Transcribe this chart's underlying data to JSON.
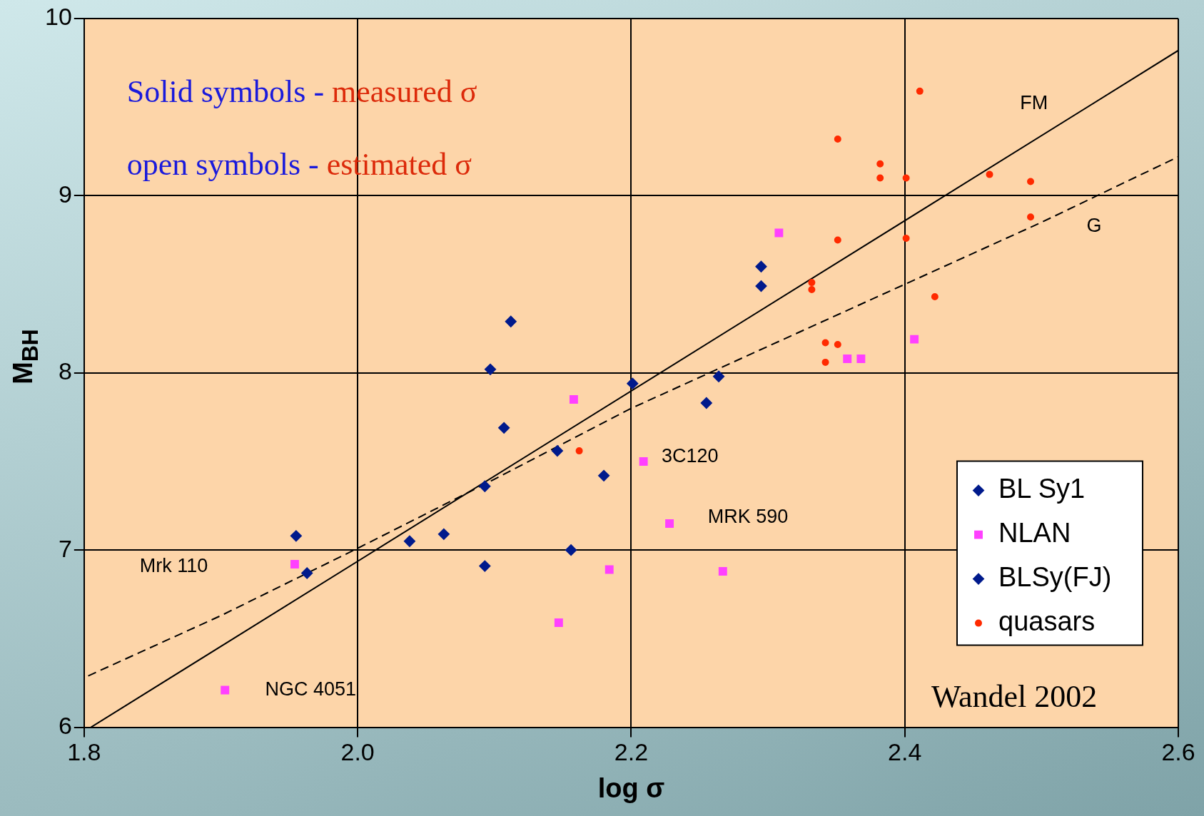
{
  "chart_data": {
    "type": "scatter",
    "xlabel": "log σ",
    "ylabel": "M$_{BH}$",
    "xlim": [
      1.8,
      2.6
    ],
    "xticks": [
      {
        "value": 1.8,
        "label": "1.8"
      },
      {
        "value": 2,
        "label": "2.0"
      },
      {
        "value": 2.2,
        "label": "2.2"
      },
      {
        "value": 2.4,
        "label": "2.4"
      },
      {
        "value": 2.6,
        "label": "2.6"
      }
    ],
    "ylim": [
      6,
      10
    ],
    "yticks": [
      6,
      7,
      8,
      9,
      10
    ],
    "grid": true,
    "legend": "bottom right",
    "series": [
      {
        "name": "BL Sy1",
        "color": "#001a8c",
        "marker": "diamond",
        "x": [
          1.955,
          2.097,
          2.107,
          2.146,
          2.093,
          2.093,
          2.255
        ],
        "values": [
          7.08,
          8.02,
          7.69,
          7.56,
          7.36,
          6.91,
          7.83
        ]
      },
      {
        "name": "NLAN",
        "color": "#ff40ff",
        "marker": "square",
        "x": [
          2.308,
          2.158,
          2.184,
          2.147,
          2.267,
          2.358,
          2.368,
          2.407
        ],
        "values": [
          8.79,
          7.85,
          6.89,
          6.59,
          6.88,
          8.08,
          8.08,
          8.19
        ]
      },
      {
        "name": "BLSy(FJ)",
        "color": "#001a8c",
        "marker": "diamond",
        "x": [
          1.963,
          2.038,
          2.063,
          2.112,
          2.156,
          2.18,
          2.201,
          2.264,
          2.295,
          2.295
        ],
        "values": [
          6.87,
          7.05,
          7.09,
          8.29,
          7,
          7.42,
          7.94,
          7.98,
          8.6,
          8.49
        ]
      },
      {
        "name": "quasars",
        "color": "#ff2a00",
        "marker": "circle",
        "x": [
          2.162,
          2.411,
          2.351,
          2.382,
          2.382,
          2.401,
          2.462,
          2.492,
          2.492,
          2.351,
          2.401,
          2.332,
          2.332,
          2.422,
          2.342,
          2.351,
          2.342
        ],
        "values": [
          7.56,
          9.59,
          9.32,
          9.18,
          9.1,
          9.1,
          9.12,
          9.08,
          8.88,
          8.75,
          8.76,
          8.51,
          8.47,
          8.43,
          8.17,
          8.16,
          8.06
        ]
      },
      {
        "color": "#ff40ff",
        "marker": "square",
        "x": [
          1.954,
          1.903,
          2.209,
          2.228
        ],
        "values": [
          6.92,
          6.21,
          7.5,
          7.15
        ]
      },
      {
        "type": "line",
        "color": "#000000",
        "line_style": "solid",
        "marker": "none",
        "x": [
          1.805,
          2.6
        ],
        "values": [
          6,
          9.82
        ]
      },
      {
        "type": "line",
        "color": "#000000",
        "line_style": "dashed",
        "marker": "none",
        "x": [
          1.803,
          1.9,
          2,
          2.1,
          2.2,
          2.3,
          2.4,
          2.5,
          2.6
        ],
        "values": [
          6.29,
          6.63,
          7.01,
          7.4,
          7.8,
          8.15,
          8.5,
          8.85,
          9.22
        ]
      }
    ],
    "annotations": [
      "Solid symbols - measured σ",
      "open symbols - estimated σ",
      "FM",
      "G",
      "Mrk 110",
      {
        "text": "NGC 4051",
        "x": 1.903,
        "y": 6.21
      },
      {
        "text": "3C120",
        "x": 2.209,
        "y": 7.5
      },
      {
        "text": "MRK 590",
        "x": 2.228,
        "y": 7.15
      },
      "Wandel 2002"
    ]
  }
}
